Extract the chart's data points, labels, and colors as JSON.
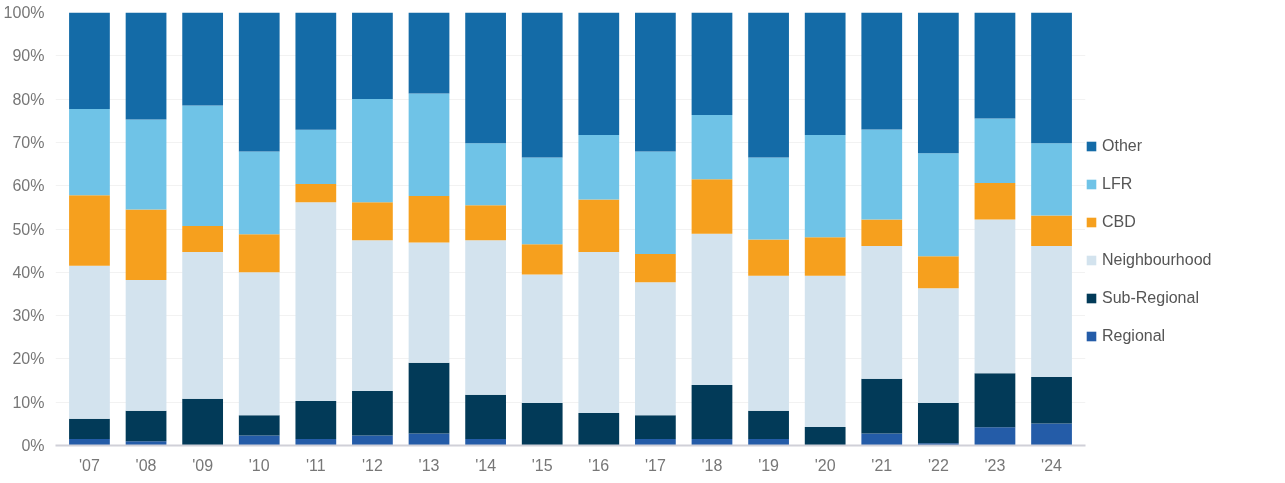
{
  "chart_data": {
    "type": "bar",
    "stacked": true,
    "categories": [
      "'07",
      "'08",
      "'09",
      "'10",
      "'11",
      "'12",
      "'13",
      "'14",
      "'15",
      "'16",
      "'17",
      "'18",
      "'19",
      "'20",
      "'21",
      "'22",
      "'23",
      "'24"
    ],
    "series": [
      {
        "name": "Regional",
        "color": "#245ca8",
        "values": [
          1.5,
          1.0,
          0,
          2.3,
          1.5,
          2.3,
          2.8,
          1.5,
          0,
          0,
          1.5,
          1.5,
          1.5,
          0,
          2.8,
          0.5,
          4.2,
          5.1
        ]
      },
      {
        "name": "Sub-Regional",
        "color": "#023a58",
        "values": [
          4.7,
          7.0,
          10.8,
          4.7,
          8.8,
          10.3,
          16.3,
          10.2,
          9.8,
          7.5,
          5.5,
          12.5,
          6.5,
          4.3,
          12.6,
          9.3,
          12.5,
          10.7
        ]
      },
      {
        "name": "Neighbourhood",
        "color": "#d3e3ee",
        "values": [
          35.3,
          30.2,
          33.9,
          33.0,
          45.9,
          34.8,
          27.8,
          35.7,
          29.7,
          37.2,
          30.7,
          34.9,
          31.2,
          34.9,
          30.7,
          26.5,
          35.5,
          30.3
        ]
      },
      {
        "name": "CBD",
        "color": "#f6a01e",
        "values": [
          16.3,
          16.3,
          6.0,
          8.8,
          4.2,
          8.8,
          10.7,
          8.1,
          7.0,
          12.1,
          6.5,
          12.6,
          8.4,
          8.9,
          6.1,
          7.4,
          8.4,
          7.0
        ]
      },
      {
        "name": "LFR",
        "color": "#6fc3e7",
        "values": [
          19.9,
          20.8,
          27.8,
          19.1,
          12.5,
          23.8,
          23.7,
          14.3,
          20.0,
          14.9,
          23.7,
          14.8,
          18.9,
          23.6,
          20.8,
          23.8,
          14.9,
          16.7
        ]
      },
      {
        "name": "Other",
        "color": "#146ba7",
        "values": [
          22.3,
          24.7,
          21.5,
          32.1,
          27.1,
          20.0,
          18.7,
          30.2,
          33.5,
          28.3,
          32.1,
          23.7,
          33.5,
          28.3,
          27.0,
          32.5,
          24.5,
          30.2
        ]
      }
    ],
    "ylim": [
      0,
      100
    ],
    "yticks": [
      {
        "value": 0,
        "label": "0%"
      },
      {
        "value": 10,
        "label": "10%"
      },
      {
        "value": 20,
        "label": "20%"
      },
      {
        "value": 30,
        "label": "30%"
      },
      {
        "value": 40,
        "label": "40%"
      },
      {
        "value": 50,
        "label": "50%"
      },
      {
        "value": 60,
        "label": "60%"
      },
      {
        "value": 70,
        "label": "70%"
      },
      {
        "value": 80,
        "label": "80%"
      },
      {
        "value": 90,
        "label": "90%"
      },
      {
        "value": 100,
        "label": "100%"
      }
    ],
    "grid": "y",
    "legend": "right"
  }
}
